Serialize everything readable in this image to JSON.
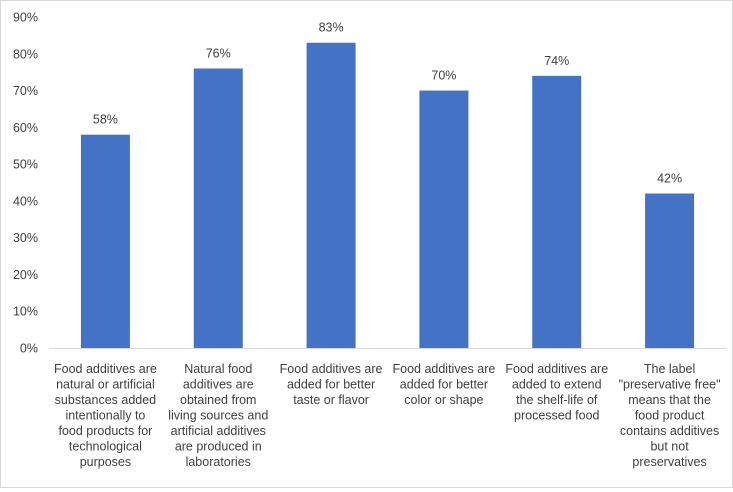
{
  "chart_data": {
    "type": "bar",
    "title": "",
    "xlabel": "",
    "ylabel": "",
    "ylim": [
      0,
      90
    ],
    "ytick_labels": [
      "0%",
      "10%",
      "20%",
      "30%",
      "40%",
      "50%",
      "60%",
      "70%",
      "80%",
      "90%"
    ],
    "grid": false,
    "bar_color": "#4472C4",
    "categories": [
      [
        "Food additives are",
        "natural or artificial",
        "substances added",
        "intentionally to",
        "food products for",
        "technological",
        "purposes"
      ],
      [
        "Natural food",
        "additives are",
        "obtained from",
        "living sources and",
        "artificial additives",
        "are produced in",
        "laboratories"
      ],
      [
        "Food additives are",
        "added for better",
        "taste or flavor"
      ],
      [
        "Food additives are",
        "added for better",
        "color or shape"
      ],
      [
        "Food additives are",
        "added to extend",
        "the shelf-life of",
        "processed food"
      ],
      [
        "The label",
        "\"preservative free\"",
        "means that the",
        "food product",
        "contains additives",
        "but not",
        "preservatives"
      ]
    ],
    "values": [
      58,
      76,
      83,
      70,
      74,
      42
    ],
    "data_labels": [
      "58%",
      "76%",
      "83%",
      "70%",
      "74%",
      "42%"
    ]
  }
}
